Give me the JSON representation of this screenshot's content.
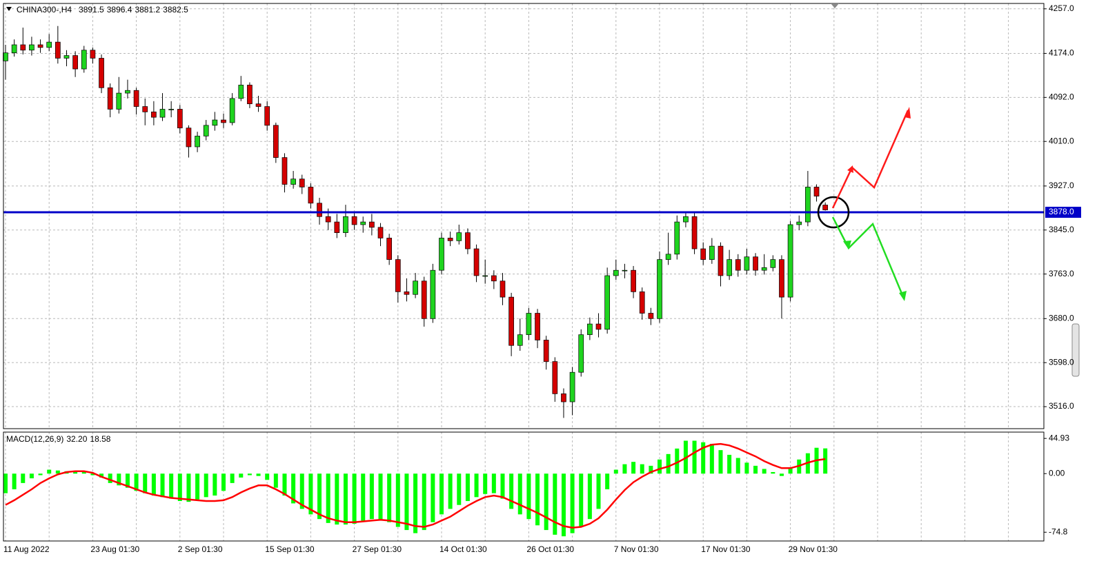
{
  "chart_data": [
    {
      "type": "candlestick",
      "title": "CHINA300-,H4",
      "categories": [
        "11 Aug 2022",
        null,
        null,
        null,
        null,
        null,
        null,
        null,
        null,
        null,
        "23 Aug 01:30",
        null,
        null,
        null,
        null,
        null,
        null,
        null,
        null,
        null,
        "2 Sep 01:30",
        null,
        null,
        null,
        null,
        null,
        null,
        null,
        null,
        null,
        "15 Sep 01:30",
        null,
        null,
        null,
        null,
        null,
        null,
        null,
        null,
        null,
        "27 Sep 01:30",
        null,
        null,
        null,
        null,
        null,
        null,
        null,
        null,
        null,
        "14 Oct 01:30",
        null,
        null,
        null,
        null,
        null,
        null,
        null,
        null,
        null,
        "26 Oct 01:30",
        null,
        null,
        null,
        null,
        null,
        null,
        null,
        null,
        null,
        "7 Nov 01:30",
        null,
        null,
        null,
        null,
        null,
        null,
        null,
        null,
        null,
        "17 Nov 01:30",
        null,
        null,
        null,
        null,
        null,
        null,
        null,
        null,
        null,
        "29 Nov 01:30",
        null,
        null,
        null,
        null
      ],
      "open": [
        4160,
        4175,
        4190,
        4180,
        4190,
        4185,
        4195,
        4165,
        4170,
        4145,
        4180,
        4165,
        4110,
        4070,
        4100,
        4105,
        4075,
        4065,
        4055,
        4070,
        4070,
        4035,
        4000,
        4020,
        4040,
        4050,
        4045,
        4090,
        4115,
        4080,
        4075,
        4040,
        3980,
        3930,
        3940,
        3925,
        3895,
        3870,
        3860,
        3840,
        3870,
        3855,
        3860,
        3850,
        3830,
        3790,
        3730,
        3725,
        3750,
        3680,
        3770,
        3830,
        3825,
        3840,
        3810,
        3760,
        3760,
        3750,
        3720,
        3630,
        3650,
        3690,
        3640,
        3600,
        3540,
        3525,
        3580,
        3650,
        3670,
        3660,
        3760,
        3770,
        3770,
        3730,
        3690,
        3680,
        3790,
        3800,
        3860,
        3870,
        3810,
        3790,
        3815,
        3760,
        3790,
        3770,
        3795,
        3770,
        3775,
        3790,
        3720,
        3855,
        3860,
        3925,
        3891.5
      ],
      "high": [
        4190,
        4200,
        4222,
        4205,
        4200,
        4210,
        4225,
        4180,
        4178,
        4188,
        4185,
        4172,
        4118,
        4130,
        4125,
        4110,
        4090,
        4085,
        4100,
        4085,
        4078,
        4040,
        4028,
        4050,
        4065,
        4062,
        4100,
        4132,
        4120,
        4095,
        4085,
        4045,
        3988,
        3955,
        3948,
        3932,
        3905,
        3885,
        3875,
        3892,
        3880,
        3870,
        3875,
        3858,
        3838,
        3798,
        3755,
        3765,
        3758,
        3782,
        3840,
        3842,
        3855,
        3848,
        3818,
        3790,
        3770,
        3765,
        3728,
        3680,
        3700,
        3698,
        3648,
        3608,
        3550,
        3590,
        3660,
        3682,
        3690,
        3775,
        3790,
        3782,
        3778,
        3738,
        3700,
        3805,
        3840,
        3872,
        3880,
        3878,
        3822,
        3830,
        3822,
        3808,
        3800,
        3810,
        3802,
        3800,
        3798,
        3798,
        3862,
        3872,
        3955,
        3930,
        3896.4
      ],
      "low": [
        4125,
        4168,
        4172,
        4170,
        4175,
        4178,
        4155,
        4150,
        4130,
        4138,
        4155,
        4100,
        4055,
        4062,
        4090,
        4060,
        4040,
        4040,
        4048,
        4055,
        4025,
        3980,
        3990,
        4012,
        4030,
        4035,
        4040,
        4085,
        4072,
        4065,
        4030,
        3970,
        3915,
        3922,
        3912,
        3885,
        3855,
        3845,
        3830,
        3832,
        3845,
        3840,
        3835,
        3815,
        3780,
        3710,
        3712,
        3718,
        3665,
        3672,
        3762,
        3815,
        3818,
        3800,
        3748,
        3745,
        3735,
        3705,
        3610,
        3620,
        3640,
        3625,
        3585,
        3525,
        3495,
        3500,
        3572,
        3640,
        3645,
        3652,
        3752,
        3755,
        3718,
        3678,
        3668,
        3672,
        3780,
        3790,
        3850,
        3800,
        3780,
        3782,
        3740,
        3752,
        3758,
        3762,
        3760,
        3762,
        3768,
        3680,
        3712,
        3845,
        3852,
        3898,
        3881.2
      ],
      "close": [
        4175,
        4190,
        4180,
        4190,
        4185,
        4195,
        4165,
        4170,
        4145,
        4180,
        4165,
        4110,
        4070,
        4100,
        4105,
        4075,
        4065,
        4055,
        4070,
        4070,
        4035,
        4000,
        4020,
        4040,
        4050,
        4045,
        4090,
        4115,
        4080,
        4075,
        4040,
        3980,
        3930,
        3940,
        3925,
        3895,
        3870,
        3860,
        3840,
        3870,
        3855,
        3860,
        3850,
        3830,
        3790,
        3730,
        3725,
        3750,
        3680,
        3770,
        3830,
        3825,
        3840,
        3810,
        3760,
        3760,
        3750,
        3720,
        3630,
        3650,
        3690,
        3640,
        3600,
        3540,
        3525,
        3580,
        3650,
        3670,
        3660,
        3760,
        3770,
        3770,
        3730,
        3690,
        3680,
        3790,
        3800,
        3860,
        3870,
        3810,
        3790,
        3815,
        3760,
        3790,
        3770,
        3795,
        3770,
        3775,
        3790,
        3720,
        3855,
        3860,
        3925,
        3908,
        3882.5
      ],
      "up_color": "#1fd41f",
      "down_color": "#d40000",
      "ylim": [
        3475,
        4267
      ],
      "yticks": [
        {
          "value": 4257,
          "label": "4257.0"
        },
        {
          "value": 4174,
          "label": "4174.0"
        },
        {
          "value": 4092,
          "label": "4092.0"
        },
        {
          "value": 4010,
          "label": "4010.0"
        },
        {
          "value": 3927,
          "label": "3927.0"
        },
        {
          "value": 3845,
          "label": "3845.0"
        },
        {
          "value": 3763,
          "label": "3763.0"
        },
        {
          "value": 3680,
          "label": "3680.0"
        },
        {
          "value": 3598,
          "label": "3598.0"
        },
        {
          "value": 3516,
          "label": "3516.0"
        }
      ],
      "grid": true,
      "level": {
        "value": 3878,
        "label": "3878.0",
        "color": "#0000c8"
      }
    },
    {
      "type": "macd",
      "title": "MACD(12,26,9)",
      "readout": [
        {
          "value": 32.2,
          "label": "32.20"
        },
        18.58
      ],
      "series": [
        {
          "type": "bar",
          "color": "#00ff00",
          "values": [
            -25,
            -20,
            -12,
            -6,
            -2,
            5,
            4,
            3,
            2,
            2,
            -2,
            -5,
            -12,
            -15,
            -18,
            -22,
            -25,
            -28,
            -30,
            -32,
            -35,
            -36,
            -33,
            -30,
            -28,
            -22,
            -12,
            -5,
            -2,
            -3,
            -8,
            -18,
            -28,
            -38,
            -45,
            -52,
            -58,
            -63,
            -65,
            -65,
            -64,
            -60,
            -58,
            -60,
            -62,
            -68,
            -72,
            -76,
            -72,
            -62,
            -52,
            -45,
            -40,
            -35,
            -30,
            -26,
            -25,
            -32,
            -45,
            -52,
            -58,
            -66,
            -72,
            -78,
            -80,
            -76,
            -68,
            -58,
            -45,
            -20,
            5,
            12,
            15,
            12,
            10,
            18,
            25,
            32,
            42,
            42,
            40,
            38,
            30,
            24,
            20,
            14,
            10,
            6,
            2,
            -3,
            8,
            18,
            26,
            33,
            32.2
          ]
        },
        {
          "type": "line",
          "color": "#ff0000",
          "values": [
            -40,
            -34,
            -27,
            -20,
            -12,
            -6,
            -1,
            2,
            3,
            3,
            1,
            -4,
            -8,
            -12,
            -16,
            -20,
            -24,
            -27,
            -29,
            -31,
            -32,
            -33,
            -34,
            -35,
            -35,
            -34,
            -30,
            -24,
            -19,
            -15,
            -15,
            -20,
            -26,
            -33,
            -40,
            -46,
            -52,
            -57,
            -60,
            -62,
            -62,
            -61,
            -60,
            -59,
            -60,
            -62,
            -64,
            -67,
            -68,
            -65,
            -60,
            -55,
            -48,
            -41,
            -35,
            -30,
            -28,
            -30,
            -35,
            -40,
            -45,
            -50,
            -56,
            -62,
            -67,
            -69,
            -68,
            -64,
            -57,
            -46,
            -33,
            -21,
            -11,
            -4,
            2,
            6,
            9,
            14,
            20,
            27,
            33,
            37,
            38,
            36,
            32,
            27,
            22,
            16,
            11,
            7,
            7,
            10,
            14,
            17,
            18.58
          ]
        }
      ],
      "ylim": [
        -86,
        53
      ],
      "yticks": [
        44.93,
        {
          "value": 0,
          "label": "0.00"
        },
        -74.8
      ]
    }
  ]
}
